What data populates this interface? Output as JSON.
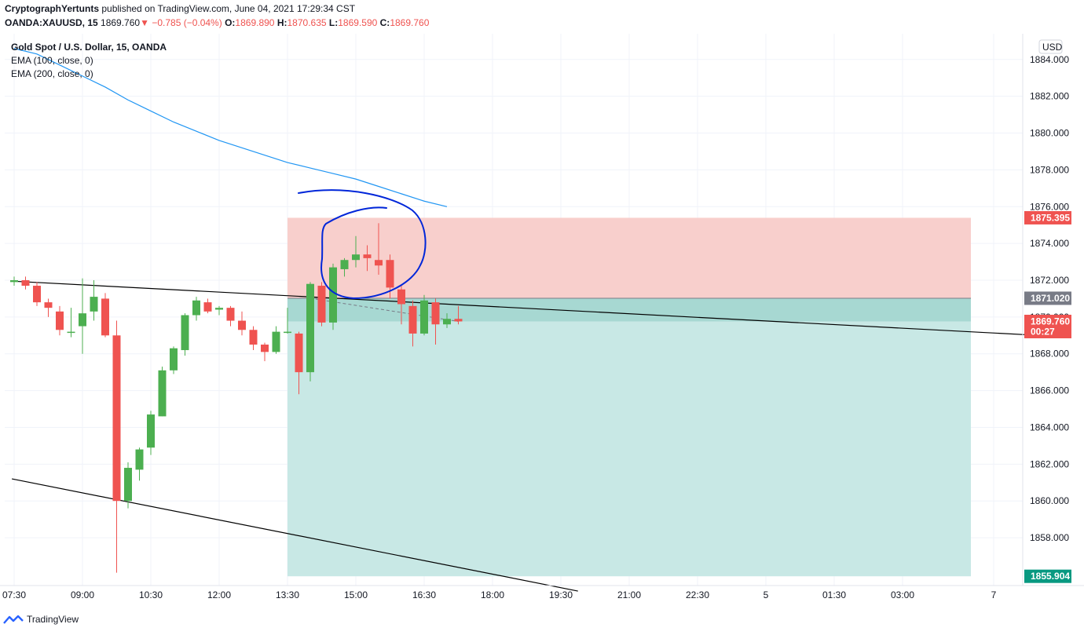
{
  "header": {
    "author": "CryptographYertunts",
    "published": "published on TradingView.com, June 04, 2021 17:29:34 CST",
    "symbol": "OANDA:XAUUSD, 15",
    "last": "1869.760",
    "arrow": "▼",
    "change": "−0.785 (−0.04%)",
    "o_label": "O:",
    "o_value": "1869.890",
    "h_label": "H:",
    "h_value": "1870.635",
    "l_label": "L:",
    "l_value": "1869.590",
    "c_label": "C:",
    "c_value": "1869.760"
  },
  "legend": {
    "title": "Gold Spot / U.S. Dollar, 15, OANDA",
    "ema100": "EMA (100, close, 0)",
    "ema200": "EMA (200, close, 0)"
  },
  "footer": {
    "brand": "TradingView"
  },
  "colors": {
    "up": "#26a69a",
    "up_candle": "#4caf50",
    "down": "#ef5350",
    "ema": "#2196f3",
    "stop_zone": "#f8cfcc",
    "target_zone": "#c8e8e5",
    "annotation": "#0026d9"
  },
  "chart_data": {
    "type": "candlestick",
    "y_unit": "USD",
    "ylim": [
      1855.4,
      1885.4
    ],
    "yticks": [
      "1884.000",
      "1882.000",
      "1880.000",
      "1878.000",
      "1876.000",
      "1874.000",
      "1872.000",
      "1870.000",
      "1868.000",
      "1866.000",
      "1864.000",
      "1862.000",
      "1860.000",
      "1858.000"
    ],
    "xticks": [
      {
        "label": "07:30",
        "i": 0
      },
      {
        "label": "09:00",
        "i": 6
      },
      {
        "label": "10:30",
        "i": 12
      },
      {
        "label": "12:00",
        "i": 18
      },
      {
        "label": "13:30",
        "i": 24
      },
      {
        "label": "15:00",
        "i": 30
      },
      {
        "label": "16:30",
        "i": 36
      },
      {
        "label": "18:00",
        "i": 42
      },
      {
        "label": "19:30",
        "i": 48
      },
      {
        "label": "21:00",
        "i": 54
      },
      {
        "label": "22:30",
        "i": 60
      },
      {
        "label": "5",
        "i": 66
      },
      {
        "label": "01:30",
        "i": 72
      },
      {
        "label": "03:00",
        "i": 78
      },
      {
        "label": "7",
        "i": 86
      }
    ],
    "candles": [
      [
        1871.9,
        1872.2,
        1871.7,
        1872.0
      ],
      [
        1872.0,
        1872.2,
        1871.5,
        1871.7
      ],
      [
        1871.7,
        1871.9,
        1870.6,
        1870.8
      ],
      [
        1870.8,
        1871.0,
        1870.0,
        1870.5
      ],
      [
        1870.3,
        1870.6,
        1869.0,
        1869.3
      ],
      [
        1869.2,
        1870.5,
        1868.9,
        1869.2
      ],
      [
        1869.5,
        1872.1,
        1868.0,
        1870.2
      ],
      [
        1870.3,
        1872.0,
        1869.8,
        1871.1
      ],
      [
        1871.0,
        1871.3,
        1868.9,
        1869.0
      ],
      [
        1869.0,
        1869.8,
        1856.1,
        1860.0
      ],
      [
        1860.0,
        1862.1,
        1859.6,
        1861.8
      ],
      [
        1861.7,
        1862.9,
        1861.1,
        1862.8
      ],
      [
        1862.9,
        1864.9,
        1862.5,
        1864.7
      ],
      [
        1864.6,
        1867.3,
        1864.6,
        1867.1
      ],
      [
        1867.1,
        1868.4,
        1866.9,
        1868.3
      ],
      [
        1868.2,
        1870.2,
        1867.9,
        1870.1
      ],
      [
        1870.1,
        1871.1,
        1869.8,
        1870.9
      ],
      [
        1870.8,
        1871.0,
        1870.2,
        1870.3
      ],
      [
        1870.4,
        1870.6,
        1870.1,
        1870.5
      ],
      [
        1870.5,
        1870.6,
        1869.5,
        1869.8
      ],
      [
        1869.8,
        1870.3,
        1869.0,
        1869.3
      ],
      [
        1869.3,
        1869.5,
        1868.2,
        1868.5
      ],
      [
        1868.5,
        1868.6,
        1867.6,
        1868.1
      ],
      [
        1868.1,
        1869.5,
        1868.0,
        1869.2
      ],
      [
        1869.2,
        1870.5,
        1869.1,
        1869.2
      ],
      [
        1869.1,
        1869.2,
        1865.8,
        1867.0
      ],
      [
        1867.0,
        1871.9,
        1866.5,
        1871.8
      ],
      [
        1871.7,
        1871.9,
        1869.5,
        1869.7
      ],
      [
        1869.7,
        1872.9,
        1869.3,
        1872.7
      ],
      [
        1872.6,
        1873.2,
        1872.2,
        1873.1
      ],
      [
        1873.1,
        1874.4,
        1872.7,
        1873.4
      ],
      [
        1873.4,
        1873.9,
        1872.5,
        1873.2
      ],
      [
        1873.1,
        1875.1,
        1872.3,
        1872.8
      ],
      [
        1873.1,
        1873.4,
        1871.0,
        1871.6
      ],
      [
        1871.5,
        1871.7,
        1869.6,
        1870.7
      ],
      [
        1870.6,
        1870.9,
        1868.4,
        1869.1
      ],
      [
        1869.1,
        1871.2,
        1869.0,
        1870.9
      ],
      [
        1870.8,
        1871.0,
        1868.5,
        1869.6
      ],
      [
        1869.6,
        1870.2,
        1869.4,
        1869.9
      ],
      [
        1869.9,
        1870.6,
        1869.6,
        1869.76
      ]
    ],
    "ema_series": {
      "start_i": 0,
      "values": [
        1884.6,
        1884.3,
        1883.7,
        1883.1,
        1882.5,
        1881.8,
        1881.2,
        1880.6,
        1880.1,
        1879.6,
        1879.2,
        1878.8,
        1878.4,
        1878.1,
        1877.8,
        1877.5,
        1877.1,
        1876.7,
        1876.3,
        1876.0
      ]
    },
    "position": {
      "type": "short",
      "start_i": 24,
      "end_i": 84,
      "entry": 1871.02,
      "stop": 1875.395,
      "target": 1855.904,
      "current": 1869.76,
      "entry_label": "1871.020",
      "stop_label": "1875.395",
      "target_label": "1855.904",
      "current_label": "1869.760",
      "countdown": "00:27"
    },
    "trendlines": [
      {
        "from": {
          "i": -0.2,
          "p": 1871.95
        },
        "to": {
          "i": 90,
          "p": 1869.0
        }
      },
      {
        "from": {
          "i": -0.2,
          "p": 1861.2
        },
        "to": {
          "i": 49.5,
          "p": 1855.1
        }
      }
    ]
  }
}
